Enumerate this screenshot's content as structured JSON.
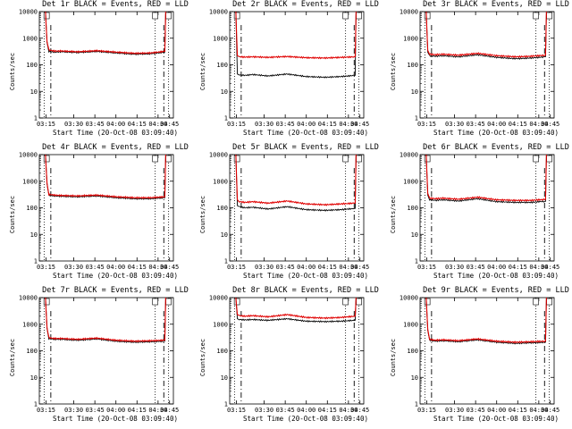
{
  "colors": {
    "events": "#000000",
    "lld": "#e00000",
    "axes": "#000000"
  },
  "chart_data": [
    {
      "type": "line",
      "title": "Det 1r BLACK = Events, RED = LLD",
      "xlabel": "Start Time (20-Oct-08 03:09:40)",
      "ylabel": "Counts/sec",
      "yscale": "log",
      "ylim": [
        1,
        10000
      ],
      "xticks": [
        "03:15",
        "03:30",
        "03:45",
        "04:00",
        "04:15",
        "04:30",
        "04:45"
      ],
      "yticks": [
        "1",
        "10",
        "100",
        "1000",
        "10000"
      ],
      "series": [
        {
          "name": "Events",
          "x": [
            3.2,
            4,
            5,
            8,
            12,
            20,
            30,
            40,
            50,
            58,
            62,
            65.5,
            66
          ],
          "y": [
            10000,
            700,
            320,
            300,
            310,
            290,
            320,
            280,
            250,
            260,
            280,
            300,
            10000
          ]
        },
        {
          "name": "LLD",
          "x": [
            3.2,
            4,
            5,
            8,
            12,
            20,
            30,
            40,
            50,
            58,
            62,
            65.5,
            66
          ],
          "y": [
            10000,
            750,
            360,
            330,
            330,
            310,
            340,
            300,
            270,
            280,
            300,
            320,
            10000
          ]
        }
      ]
    },
    {
      "type": "line",
      "title": "Det 2r BLACK = Events, RED = LLD",
      "xlabel": "Start Time (20-Oct-08 03:09:40)",
      "ylabel": "Counts/sec",
      "yscale": "log",
      "ylim": [
        1,
        10000
      ],
      "xticks": [
        "03:15",
        "03:30",
        "03:45",
        "04:00",
        "04:15",
        "04:30",
        "04:45"
      ],
      "yticks": [
        "1",
        "10",
        "100",
        "1000",
        "10000"
      ],
      "series": [
        {
          "name": "Events",
          "x": [
            3.2,
            4,
            5,
            8,
            12,
            20,
            30,
            40,
            50,
            58,
            62,
            65.5,
            66
          ],
          "y": [
            10000,
            45,
            42,
            40,
            43,
            38,
            45,
            36,
            34,
            36,
            38,
            40,
            10000
          ]
        },
        {
          "name": "LLD",
          "x": [
            3.2,
            4,
            5,
            8,
            12,
            20,
            30,
            40,
            50,
            58,
            62,
            65.5,
            66
          ],
          "y": [
            10000,
            220,
            200,
            195,
            200,
            190,
            205,
            185,
            180,
            190,
            195,
            200,
            10000
          ]
        }
      ]
    },
    {
      "type": "line",
      "title": "Det 3r BLACK = Events, RED = LLD",
      "xlabel": "Start Time (20-Oct-08 03:09:40)",
      "ylabel": "Counts/sec",
      "yscale": "log",
      "ylim": [
        1,
        10000
      ],
      "xticks": [
        "03:15",
        "03:30",
        "03:45",
        "04:00",
        "04:15",
        "04:30",
        "04:45"
      ],
      "yticks": [
        "1",
        "10",
        "100",
        "1000",
        "10000"
      ],
      "series": [
        {
          "name": "Events",
          "x": [
            3.2,
            4,
            5,
            8,
            12,
            20,
            30,
            40,
            50,
            58,
            62,
            65.5,
            66
          ],
          "y": [
            10000,
            300,
            220,
            210,
            220,
            200,
            240,
            190,
            170,
            180,
            190,
            200,
            10000
          ]
        },
        {
          "name": "LLD",
          "x": [
            3.2,
            4,
            5,
            8,
            12,
            20,
            30,
            40,
            50,
            58,
            62,
            65.5,
            66
          ],
          "y": [
            10000,
            350,
            250,
            240,
            250,
            230,
            270,
            220,
            200,
            210,
            220,
            230,
            10000
          ]
        }
      ]
    },
    {
      "type": "line",
      "title": "Det 4r BLACK = Events, RED = LLD",
      "xlabel": "Start Time (20-Oct-08 03:09:40)",
      "ylabel": "Counts/sec",
      "yscale": "log",
      "ylim": [
        1,
        10000
      ],
      "xticks": [
        "03:15",
        "03:30",
        "03:45",
        "04:00",
        "04:15",
        "04:30",
        "04:45"
      ],
      "yticks": [
        "1",
        "10",
        "100",
        "1000",
        "10000"
      ],
      "series": [
        {
          "name": "Events",
          "x": [
            3.2,
            4,
            5,
            8,
            12,
            20,
            30,
            40,
            50,
            58,
            62,
            65.5,
            66
          ],
          "y": [
            10000,
            800,
            300,
            280,
            270,
            260,
            280,
            240,
            220,
            220,
            230,
            240,
            10000
          ]
        },
        {
          "name": "LLD",
          "x": [
            3.2,
            4,
            5,
            8,
            12,
            20,
            30,
            40,
            50,
            58,
            62,
            65.5,
            66
          ],
          "y": [
            10000,
            850,
            320,
            300,
            290,
            280,
            300,
            260,
            240,
            240,
            250,
            260,
            10000
          ]
        }
      ]
    },
    {
      "type": "line",
      "title": "Det 5r BLACK = Events, RED = LLD",
      "xlabel": "Start Time (20-Oct-08 03:09:40)",
      "ylabel": "Counts/sec",
      "yscale": "log",
      "ylim": [
        1,
        10000
      ],
      "xticks": [
        "03:15",
        "03:30",
        "03:45",
        "04:00",
        "04:15",
        "04:30",
        "04:45"
      ],
      "yticks": [
        "1",
        "10",
        "100",
        "1000",
        "10000"
      ],
      "series": [
        {
          "name": "Events",
          "x": [
            3.2,
            4,
            5,
            8,
            12,
            20,
            30,
            40,
            50,
            58,
            62,
            65.5,
            66
          ],
          "y": [
            10000,
            120,
            110,
            100,
            105,
            90,
            110,
            85,
            80,
            85,
            90,
            95,
            10000
          ]
        },
        {
          "name": "LLD",
          "x": [
            3.2,
            4,
            5,
            8,
            12,
            20,
            30,
            40,
            50,
            58,
            62,
            65.5,
            66
          ],
          "y": [
            10000,
            200,
            170,
            160,
            170,
            150,
            180,
            140,
            130,
            140,
            145,
            150,
            10000
          ]
        }
      ]
    },
    {
      "type": "line",
      "title": "Det 6r BLACK = Events, RED = LLD",
      "xlabel": "Start Time (20-Oct-08 03:09:40)",
      "ylabel": "Counts/sec",
      "yscale": "log",
      "ylim": [
        1,
        10000
      ],
      "xticks": [
        "03:15",
        "03:30",
        "03:45",
        "04:00",
        "04:15",
        "04:30",
        "04:45"
      ],
      "yticks": [
        "1",
        "10",
        "100",
        "1000",
        "10000"
      ],
      "series": [
        {
          "name": "Events",
          "x": [
            3.2,
            4,
            5,
            8,
            12,
            20,
            30,
            40,
            50,
            58,
            62,
            65.5,
            66
          ],
          "y": [
            10000,
            300,
            200,
            190,
            200,
            180,
            220,
            170,
            160,
            160,
            170,
            175,
            10000
          ]
        },
        {
          "name": "LLD",
          "x": [
            3.2,
            4,
            5,
            8,
            12,
            20,
            30,
            40,
            50,
            58,
            62,
            65.5,
            66
          ],
          "y": [
            10000,
            350,
            230,
            220,
            230,
            210,
            250,
            200,
            190,
            190,
            200,
            205,
            10000
          ]
        }
      ]
    },
    {
      "type": "line",
      "title": "Det 7r BLACK = Events, RED = LLD",
      "xlabel": "Start Time (20-Oct-08 03:09:40)",
      "ylabel": "Counts/sec",
      "yscale": "log",
      "ylim": [
        1,
        10000
      ],
      "xticks": [
        "03:15",
        "03:30",
        "03:45",
        "04:00",
        "04:15",
        "04:30",
        "04:45"
      ],
      "yticks": [
        "1",
        "10",
        "100",
        "1000",
        "10000"
      ],
      "series": [
        {
          "name": "Events",
          "x": [
            3.2,
            4,
            5,
            8,
            12,
            20,
            30,
            40,
            50,
            58,
            62,
            65.5,
            66
          ],
          "y": [
            10000,
            700,
            290,
            270,
            270,
            250,
            280,
            230,
            210,
            220,
            225,
            230,
            10000
          ]
        },
        {
          "name": "LLD",
          "x": [
            3.2,
            4,
            5,
            8,
            12,
            20,
            30,
            40,
            50,
            58,
            62,
            65.5,
            66
          ],
          "y": [
            10000,
            750,
            310,
            290,
            290,
            270,
            300,
            250,
            230,
            240,
            245,
            250,
            10000
          ]
        }
      ]
    },
    {
      "type": "line",
      "title": "Det 8r BLACK = Events, RED = LLD",
      "xlabel": "Start Time (20-Oct-08 03:09:40)",
      "ylabel": "Counts/sec",
      "yscale": "log",
      "ylim": [
        1,
        10000
      ],
      "xticks": [
        "03:15",
        "03:30",
        "03:45",
        "04:00",
        "04:15",
        "04:30",
        "04:45"
      ],
      "yticks": [
        "1",
        "10",
        "100",
        "1000",
        "10000"
      ],
      "series": [
        {
          "name": "Events",
          "x": [
            3.2,
            4,
            5,
            8,
            12,
            20,
            30,
            40,
            50,
            58,
            62,
            65.5,
            66
          ],
          "y": [
            10000,
            1600,
            1500,
            1450,
            1500,
            1400,
            1600,
            1300,
            1250,
            1300,
            1350,
            1400,
            10000
          ]
        },
        {
          "name": "LLD",
          "x": [
            3.2,
            4,
            5,
            8,
            12,
            20,
            30,
            40,
            50,
            58,
            62,
            65.5,
            66
          ],
          "y": [
            10000,
            2300,
            2100,
            2000,
            2100,
            1900,
            2300,
            1800,
            1700,
            1800,
            1900,
            2000,
            10000
          ]
        }
      ]
    },
    {
      "type": "line",
      "title": "Det 9r BLACK = Events, RED = LLD",
      "xlabel": "Start Time (20-Oct-08 03:09:40)",
      "ylabel": "Counts/sec",
      "yscale": "log",
      "ylim": [
        1,
        10000
      ],
      "xticks": [
        "03:15",
        "03:30",
        "03:45",
        "04:00",
        "04:15",
        "04:30",
        "04:45"
      ],
      "yticks": [
        "1",
        "10",
        "100",
        "1000",
        "10000"
      ],
      "series": [
        {
          "name": "Events",
          "x": [
            3.2,
            4,
            5,
            8,
            12,
            20,
            30,
            40,
            50,
            58,
            62,
            65.5,
            66
          ],
          "y": [
            10000,
            600,
            250,
            230,
            240,
            220,
            260,
            210,
            190,
            200,
            205,
            210,
            10000
          ]
        },
        {
          "name": "LLD",
          "x": [
            3.2,
            4,
            5,
            8,
            12,
            20,
            30,
            40,
            50,
            58,
            62,
            65.5,
            66
          ],
          "y": [
            10000,
            650,
            270,
            250,
            260,
            240,
            280,
            230,
            210,
            220,
            225,
            230,
            10000
          ]
        }
      ]
    }
  ]
}
